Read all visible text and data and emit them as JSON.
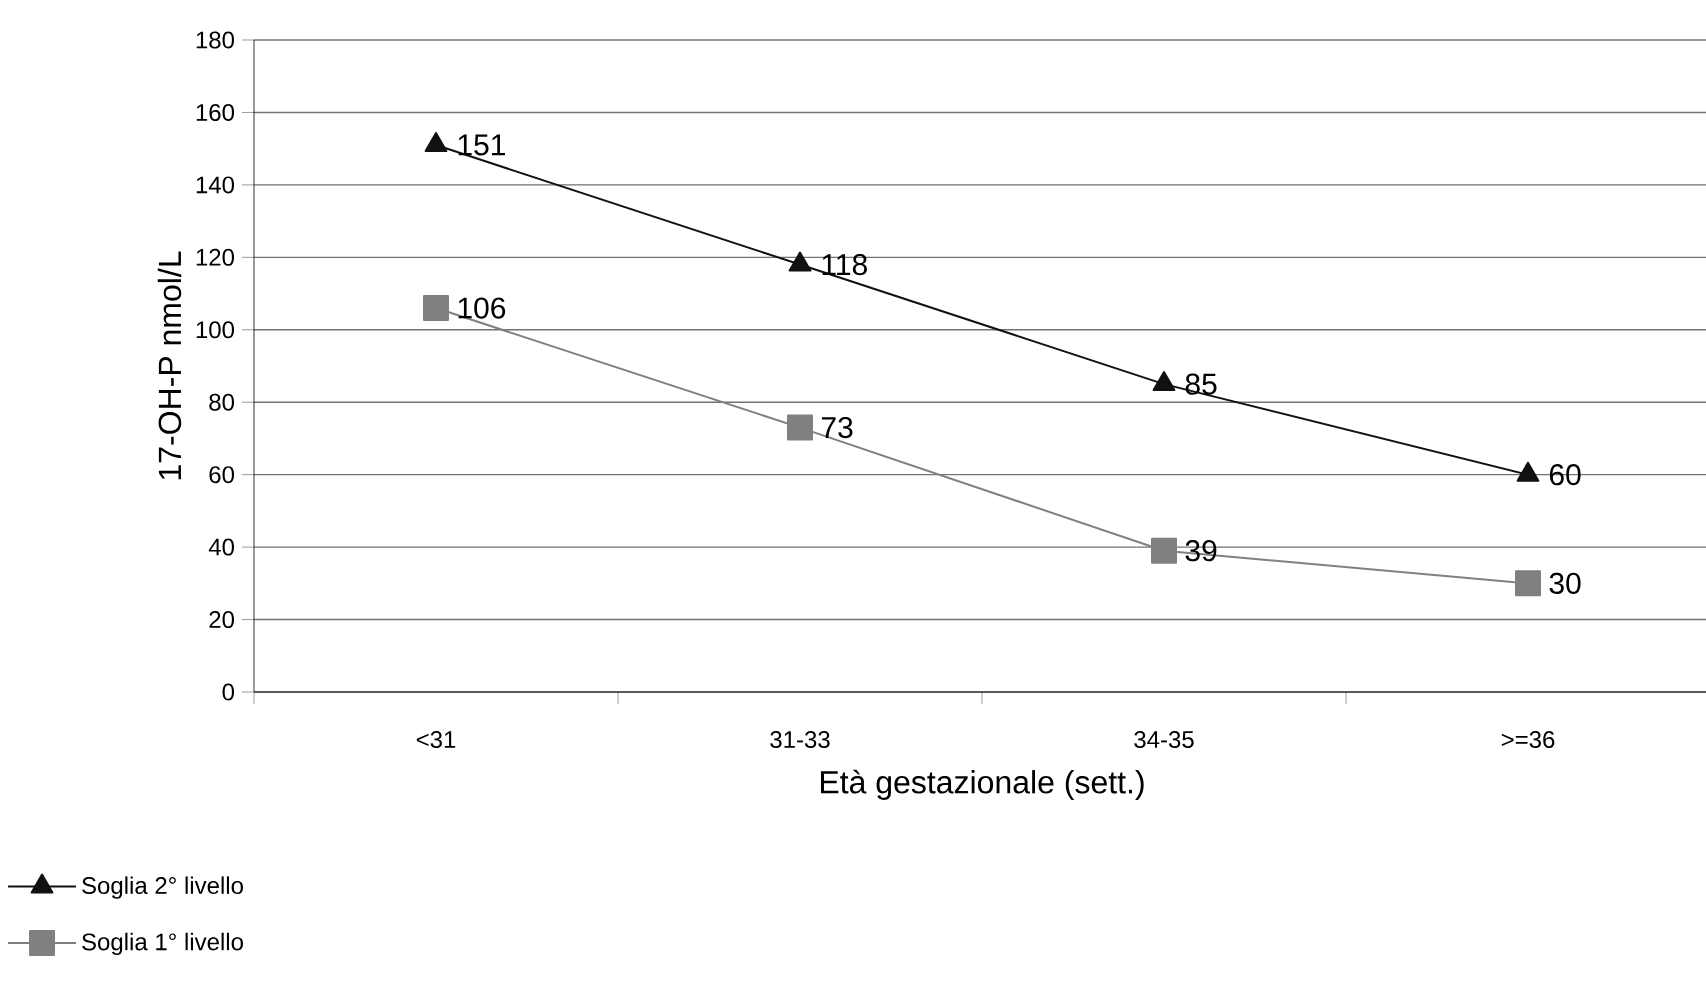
{
  "chart_data": {
    "type": "line",
    "xlabel": "Età gestazionale (sett.)",
    "ylabel": "17-OH-P nmol/L",
    "categories": [
      "<31",
      "31-33",
      "34-35",
      ">=36"
    ],
    "series": [
      {
        "name": "Soglia 2° livello",
        "color": "#111111",
        "values": [
          151,
          118,
          85,
          60
        ],
        "marker": "triangle"
      },
      {
        "name": "Soglia 1° livello",
        "color": "#808080",
        "values": [
          106,
          73,
          39,
          30
        ],
        "marker": "square"
      }
    ],
    "ylim": [
      0,
      180
    ],
    "yticks": [
      0,
      20,
      40,
      60,
      80,
      100,
      120,
      140,
      160,
      180
    ],
    "grid": "y",
    "legend": "bottom left",
    "data_labels": true,
    "line_style": "solid"
  }
}
